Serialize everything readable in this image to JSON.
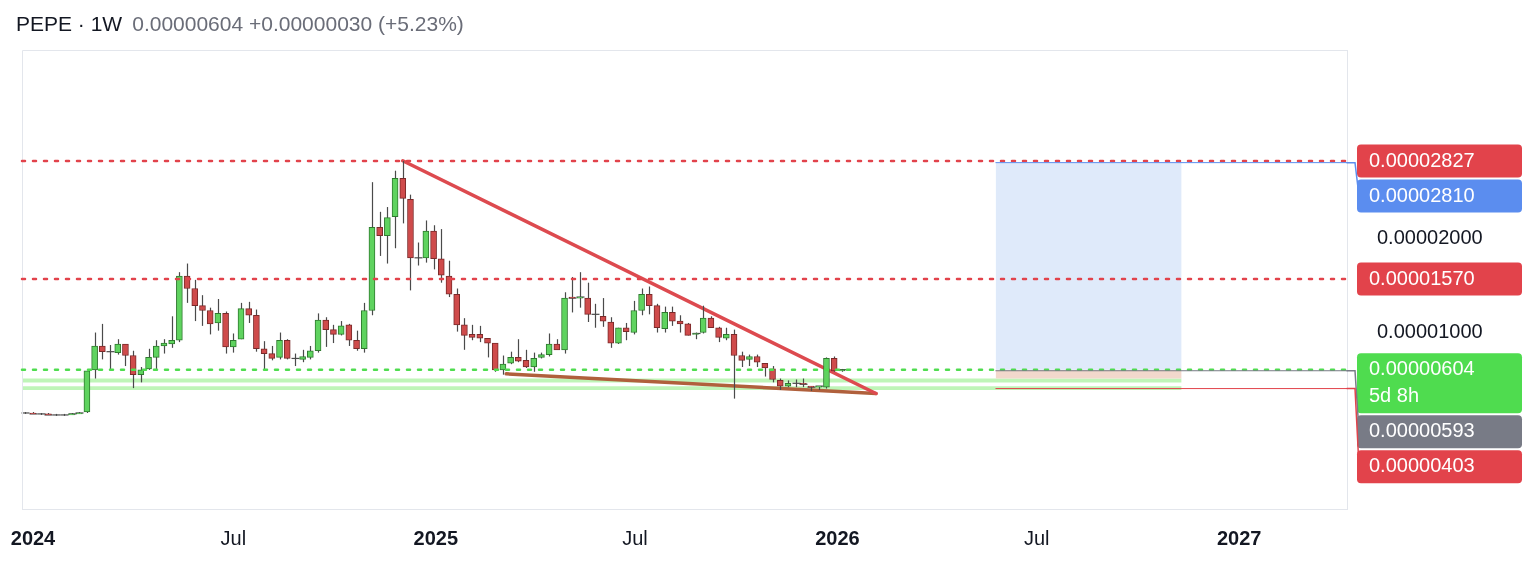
{
  "chart_data": {
    "type": "candlestick",
    "title": "PEPE · 1W",
    "subtitle": "0.00000604 +0.00000030 (+5.23%)",
    "x": [
      "2023-12-25",
      "2024-01-01",
      "2024-01-08",
      "2024-01-15",
      "2024-01-22",
      "2024-01-29",
      "2024-02-05",
      "2024-02-12",
      "2024-02-19",
      "2024-02-26",
      "2024-03-04",
      "2024-03-11",
      "2024-03-18",
      "2024-03-25",
      "2024-04-01",
      "2024-04-08",
      "2024-04-15",
      "2024-04-22",
      "2024-04-29",
      "2024-05-06",
      "2024-05-13",
      "2024-05-20",
      "2024-05-27",
      "2024-06-03",
      "2024-06-10",
      "2024-06-17",
      "2024-06-24",
      "2024-07-01",
      "2024-07-08",
      "2024-07-15",
      "2024-07-22",
      "2024-07-29",
      "2024-08-05",
      "2024-08-12",
      "2024-08-19",
      "2024-08-26",
      "2024-09-02",
      "2024-09-09",
      "2024-09-16",
      "2024-09-23",
      "2024-09-30",
      "2024-10-07",
      "2024-10-14",
      "2024-10-21",
      "2024-10-28",
      "2024-11-04",
      "2024-11-11",
      "2024-11-18",
      "2024-11-25",
      "2024-12-02",
      "2024-12-09",
      "2024-12-16",
      "2024-12-23",
      "2024-12-30",
      "2025-01-06",
      "2025-01-13",
      "2025-01-20",
      "2025-01-27",
      "2025-02-03",
      "2025-02-10",
      "2025-02-17",
      "2025-02-24",
      "2025-03-03",
      "2025-03-10",
      "2025-03-17",
      "2025-03-24",
      "2025-03-31",
      "2025-04-07",
      "2025-04-14",
      "2025-04-21",
      "2025-04-28",
      "2025-05-05",
      "2025-05-12",
      "2025-05-19",
      "2025-05-26",
      "2025-06-02",
      "2025-06-09",
      "2025-06-16",
      "2025-06-23",
      "2025-06-30",
      "2025-07-07",
      "2025-07-14",
      "2025-07-21",
      "2025-07-28",
      "2025-08-04",
      "2025-08-11",
      "2025-08-18",
      "2025-08-25",
      "2025-09-01",
      "2025-09-08",
      "2025-09-15",
      "2025-09-22",
      "2025-09-29",
      "2025-10-06",
      "2025-10-13",
      "2025-10-20",
      "2025-10-27",
      "2025-11-03",
      "2025-11-10",
      "2025-11-17",
      "2025-11-24",
      "2025-12-01",
      "2025-12-08",
      "2025-12-15",
      "2025-12-22",
      "2025-12-29",
      "2026-01-05"
    ],
    "ohlc": [
      [
        1.43e-06,
        1.53e-06,
        1.33e-06,
        1.43e-06
      ],
      [
        1.43e-06,
        1.53e-06,
        1.33e-06,
        1.33e-06
      ],
      [
        1.33e-06,
        1.43e-06,
        1.22e-06,
        1.33e-06
      ],
      [
        1.33e-06,
        1.43e-06,
        1.22e-06,
        1.22e-06
      ],
      [
        1.22e-06,
        1.33e-06,
        1.12e-06,
        1.22e-06
      ],
      [
        1.22e-06,
        1.33e-06,
        1.12e-06,
        1.22e-06
      ],
      [
        1.22e-06,
        1.43e-06,
        1.22e-06,
        1.33e-06
      ],
      [
        1.33e-06,
        1.53e-06,
        1.33e-06,
        1.43e-06
      ],
      [
        1.53e-06,
        5.92e-06,
        1.43e-06,
        5.92e-06
      ],
      [
        6.02e-06,
        1e-05,
        5.1e-06,
        8.57e-06
      ],
      [
        8.57e-06,
        1.092e-05,
        7.14e-06,
        7.96e-06
      ],
      [
        7.96e-06,
        8.67e-06,
        6.02e-06,
        7.96e-06
      ],
      [
        7.86e-06,
        9.29e-06,
        7.65e-06,
        8.78e-06
      ],
      [
        8.78e-06,
        8.78e-06,
        6.43e-06,
        7.55e-06
      ],
      [
        7.55e-06,
        8.06e-06,
        4.08e-06,
        5.51e-06
      ],
      [
        5.51e-06,
        6.33e-06,
        4.69e-06,
        6.02e-06
      ],
      [
        6.12e-06,
        8.27e-06,
        6.02e-06,
        7.35e-06
      ],
      [
        7.35e-06,
        9.18e-06,
        6.12e-06,
        8.57e-06
      ],
      [
        8.57e-06,
        9.29e-06,
        7.76e-06,
        8.88e-06
      ],
      [
        8.78e-06,
        1.173e-05,
        8.37e-06,
        9.18e-06
      ],
      [
        9.18e-06,
        1.643e-05,
        8.98e-06,
        1.602e-05
      ],
      [
        1.602e-05,
        1.735e-05,
        1.316e-05,
        1.469e-05
      ],
      [
        1.469e-05,
        1.561e-05,
        1.122e-05,
        1.286e-05
      ],
      [
        1.286e-05,
        1.398e-05,
        1.071e-05,
        1.235e-05
      ],
      [
        1.235e-05,
        1.265e-05,
        9.8e-06,
        1.092e-05
      ],
      [
        1.102e-05,
        1.357e-05,
        1.02e-05,
        1.204e-05
      ],
      [
        1.204e-05,
        1.224e-05,
        7.76e-06,
        8.47e-06
      ],
      [
        8.47e-06,
        9.9e-06,
        7.86e-06,
        9.18e-06
      ],
      [
        9.29e-06,
        1.316e-05,
        9.29e-06,
        1.255e-05
      ],
      [
        1.255e-05,
        1.327e-05,
        1.102e-05,
        1.184e-05
      ],
      [
        1.184e-05,
        1.245e-05,
        7.96e-06,
        8.27e-06
      ],
      [
        8.27e-06,
        9.08e-06,
        6.02e-06,
        7.76e-06
      ],
      [
        7.76e-06,
        8.57e-06,
        7.04e-06,
        7.24e-06
      ],
      [
        7.35e-06,
        1e-05,
        7.14e-06,
        9.18e-06
      ],
      [
        9.18e-06,
        9.29e-06,
        7.14e-06,
        7.24e-06
      ],
      [
        7.24e-06,
        7.76e-06,
        6.43e-06,
        7.24e-06
      ],
      [
        7.14e-06,
        8.16e-06,
        6.84e-06,
        7.45e-06
      ],
      [
        7.35e-06,
        8.57e-06,
        7.14e-06,
        8.06e-06
      ],
      [
        8.06e-06,
        1.204e-05,
        7.86e-06,
        1.133e-05
      ],
      [
        1.133e-05,
        1.163e-05,
        8.47e-06,
        1.031e-05
      ],
      [
        1.031e-05,
        1.082e-05,
        8.88e-06,
        9.8e-06
      ],
      [
        9.8e-06,
        1.122e-05,
        9.69e-06,
        1.071e-05
      ],
      [
        1.082e-05,
        1.092e-05,
        8.57e-06,
        9.18e-06
      ],
      [
        9.18e-06,
        1.02e-05,
        8.06e-06,
        8.27e-06
      ],
      [
        8.27e-06,
        1.316e-05,
        7.86e-06,
        1.235e-05
      ],
      [
        1.235e-05,
        2.602e-05,
        1.184e-05,
        2.122e-05
      ],
      [
        2.122e-05,
        2.286e-05,
        1.816e-05,
        2.031e-05
      ],
      [
        2.031e-05,
        2.337e-05,
        1.735e-05,
        2.224e-05
      ],
      [
        2.235e-05,
        2.724e-05,
        1.898e-05,
        2.643e-05
      ],
      [
        2.643e-05,
        2.827e-05,
        2.163e-05,
        2.429e-05
      ],
      [
        2.418e-05,
        2.469e-05,
        1.449e-05,
        1.796e-05
      ],
      [
        1.796e-05,
        1.959e-05,
        1.714e-05,
        1.796e-05
      ],
      [
        1.796e-05,
        2.194e-05,
        1.745e-05,
        2.082e-05
      ],
      [
        2.082e-05,
        2.143e-05,
        1.673e-05,
        1.786e-05
      ],
      [
        1.786e-05,
        2.102e-05,
        1.531e-05,
        1.612e-05
      ],
      [
        1.602e-05,
        1.765e-05,
        1.378e-05,
        1.408e-05
      ],
      [
        1.408e-05,
        1.469e-05,
        1.01e-05,
        1.082e-05
      ],
      [
        1.082e-05,
        1.153e-05,
        8.16e-06,
        9.69e-06
      ],
      [
        9.8e-06,
        1.082e-05,
        9.18e-06,
        9.49e-06
      ],
      [
        9.8e-06,
        1.071e-05,
        8.98e-06,
        9.39e-06
      ],
      [
        9.39e-06,
        9.39e-06,
        7.35e-06,
        8.88e-06
      ],
      [
        8.88e-06,
        8.88e-06,
        5.82e-06,
        6.02e-06
      ],
      [
        6.02e-06,
        7.55e-06,
        5.51e-06,
        6.63e-06
      ],
      [
        6.73e-06,
        7.96e-06,
        6.63e-06,
        7.35e-06
      ],
      [
        7.35e-06,
        9.29e-06,
        6.84e-06,
        6.94e-06
      ],
      [
        7.04e-06,
        8.16e-06,
        6.22e-06,
        6.33e-06
      ],
      [
        6.33e-06,
        7.86e-06,
        5.82e-06,
        7.24e-06
      ],
      [
        7.35e-06,
        7.86e-06,
        7.24e-06,
        7.65e-06
      ],
      [
        7.65e-06,
        9.9e-06,
        7.45e-06,
        8.78e-06
      ],
      [
        8.78e-06,
        9.29e-06,
        8.16e-06,
        8.16e-06
      ],
      [
        8.16e-06,
        1.429e-05,
        7.76e-06,
        1.367e-05
      ],
      [
        1.378e-05,
        1.592e-05,
        1.214e-05,
        1.367e-05
      ],
      [
        1.367e-05,
        1.643e-05,
        1.265e-05,
        1.378e-05
      ],
      [
        1.367e-05,
        1.531e-05,
        1.112e-05,
        1.194e-05
      ],
      [
        1.194e-05,
        1.306e-05,
        1.051e-05,
        1.194e-05
      ],
      [
        1.173e-05,
        1.367e-05,
        1.061e-05,
        1.122e-05
      ],
      [
        1.112e-05,
        1.163e-05,
        8.37e-06,
        8.88e-06
      ],
      [
        8.88e-06,
        1.051e-05,
        8.78e-06,
        1.051e-05
      ],
      [
        1.051e-05,
        1.102e-05,
        9.18e-06,
        1.01e-05
      ],
      [
        1e-05,
        1.337e-05,
        9.8e-06,
        1.235e-05
      ],
      [
        1.235e-05,
        1.469e-05,
        1.184e-05,
        1.408e-05
      ],
      [
        1.408e-05,
        1.49e-05,
        1.194e-05,
        1.286e-05
      ],
      [
        1.286e-05,
        1.306e-05,
        1e-05,
        1.051e-05
      ],
      [
        1.041e-05,
        1.276e-05,
        1e-05,
        1.214e-05
      ],
      [
        1.214e-05,
        1.276e-05,
        1.071e-05,
        1.122e-05
      ],
      [
        1.122e-05,
        1.184e-05,
        1e-05,
        1.092e-05
      ],
      [
        1.092e-05,
        1.102e-05,
        9.69e-06,
        9.69e-06
      ],
      [
        9.8e-06,
        1e-05,
        9.29e-06,
        9.9e-06
      ],
      [
        1e-05,
        1.286e-05,
        9.9e-06,
        1.153e-05
      ],
      [
        1.153e-05,
        1.173e-05,
        1.051e-05,
        1.051e-05
      ],
      [
        1.051e-05,
        1.061e-05,
        8.98e-06,
        9.49e-06
      ],
      [
        9.39e-06,
        1.051e-05,
        9.18e-06,
        9.8e-06
      ],
      [
        9.8e-06,
        1.031e-05,
        2.96e-06,
        7.55e-06
      ],
      [
        7.55e-06,
        7.96e-06,
        6.33e-06,
        7.04e-06
      ],
      [
        7.14e-06,
        7.65e-06,
        6.43e-06,
        7.45e-06
      ],
      [
        7.45e-06,
        7.65e-06,
        6.33e-06,
        6.84e-06
      ],
      [
        6.73e-06,
        6.73e-06,
        5.31e-06,
        6.22e-06
      ],
      [
        6.12e-06,
        6.43e-06,
        4.69e-06,
        5e-06
      ],
      [
        4.9e-06,
        5.1e-06,
        3.88e-06,
        4.29e-06
      ],
      [
        4.29e-06,
        4.9e-06,
        4.18e-06,
        4.59e-06
      ],
      [
        4.59e-06,
        5e-06,
        4.18e-06,
        4.59e-06
      ],
      [
        4.59e-06,
        5.1e-06,
        4.18e-06,
        4.49e-06
      ],
      [
        4.29e-06,
        4.29e-06,
        3.78e-06,
        4.18e-06
      ],
      [
        4.18e-06,
        4.29e-06,
        3.88e-06,
        4.29e-06
      ],
      [
        4.18e-06,
        7.35e-06,
        4.03e-06,
        7.24e-06
      ],
      [
        7.24e-06,
        7.45e-06,
        5.82e-06,
        5.92e-06
      ],
      [
        5.92e-06,
        6.12e-06,
        5.82e-06,
        6.04e-06
      ]
    ],
    "series": [
      {
        "type": "line",
        "x": [
          "2024-12-02",
          "2026-02-05"
        ],
        "values": [
          2.83e-05,
          3.5e-06
        ],
        "color": "#dd4a4f"
      },
      {
        "type": "line",
        "x": [
          "2025-03-06",
          "2026-02-05"
        ],
        "values": [
          5.6e-06,
          3.5e-06
        ],
        "color": "#b0603c"
      }
    ],
    "xlim": [
      "2023-12-22",
      "2027-04-09"
    ],
    "xticks": [
      {
        "value": "2024-01-01",
        "label": "2024"
      },
      {
        "value": "2024-07-01",
        "label": "Jul"
      },
      {
        "value": "2025-01-01",
        "label": "2025"
      },
      {
        "value": "2025-07-01",
        "label": "Jul"
      },
      {
        "value": "2026-01-01",
        "label": "2026"
      },
      {
        "value": "2026-07-01",
        "label": "Jul"
      },
      {
        "value": "2027-01-01",
        "label": "2027"
      }
    ],
    "ylim": [
      -8.8e-06,
      4.01e-05
    ],
    "yticks": [
      {
        "value": 1e-05,
        "label": "0.00001000"
      },
      {
        "value": 2e-05,
        "label": "0.00002000"
      }
    ],
    "bands": [
      {
        "axis": "y",
        "from": 4.69e-06,
        "to": 5.1e-06,
        "color": "#bff5b8"
      },
      {
        "axis": "y",
        "from": 3.88e-06,
        "to": 4.29e-06,
        "color": "#bff5b8"
      },
      {
        "axis": "y",
        "from": 5.1e-06,
        "to": 6.04e-06,
        "color": "#f2d8cc"
      },
      {
        "axis": "y",
        "from": 6.04e-06,
        "to": 2.81e-05,
        "color": "#dfeafa"
      }
    ],
    "ref_lines": [
      {
        "axis": "y",
        "value": 2.827e-05,
        "label": "0.00002827",
        "color": "#e2434b",
        "line_style": "dotted"
      },
      {
        "axis": "y",
        "value": 1.57e-05,
        "label": "0.00001570",
        "color": "#e2434b",
        "line_style": "dotted"
      },
      {
        "axis": "y",
        "value": 6.04e-06,
        "label": "0.00000604\n5d 8h",
        "color": "#4fdc4f",
        "line_style": "dotted"
      },
      {
        "axis": "y",
        "value": 2.81e-05,
        "label": "0.00002810",
        "color": "#5b8def"
      },
      {
        "axis": "y",
        "value": 5.93e-06,
        "label": "0.00000593",
        "color": "#787b86"
      },
      {
        "axis": "y",
        "value": 4.03e-06,
        "label": "0.00000403",
        "color": "#e2434b"
      }
    ]
  }
}
